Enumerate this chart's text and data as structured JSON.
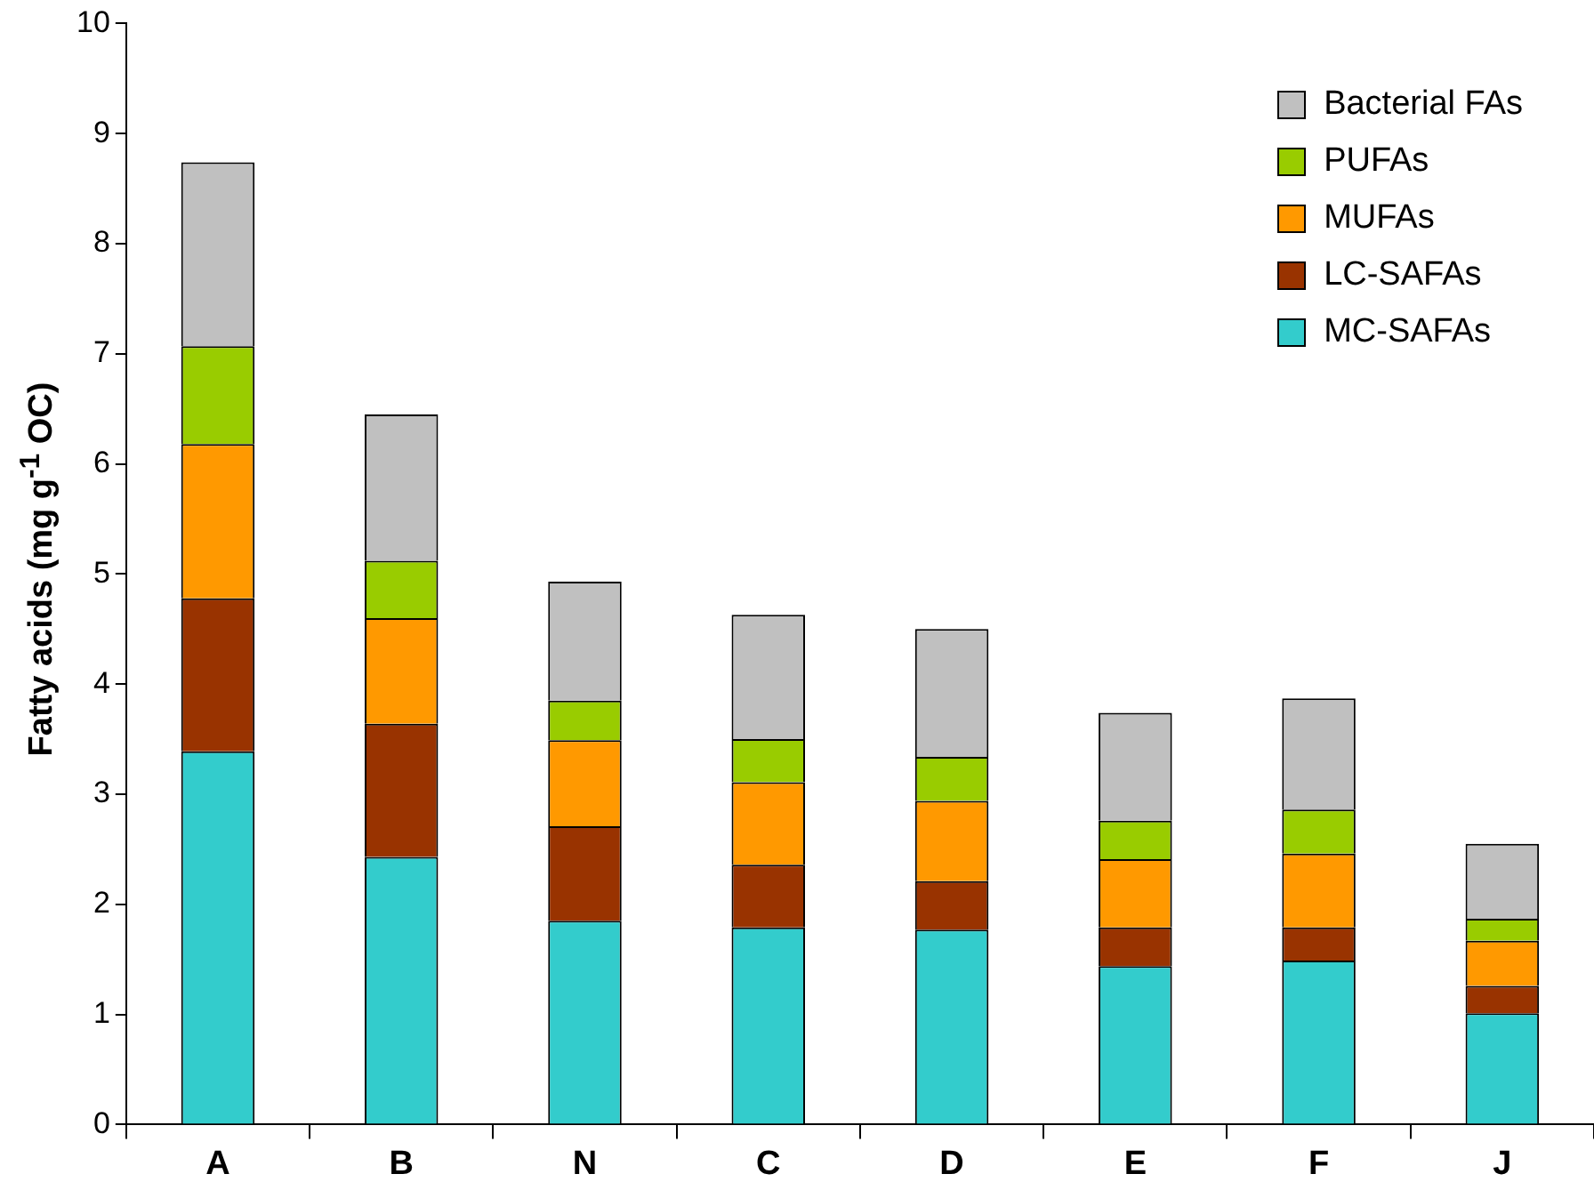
{
  "chart_data": {
    "type": "bar",
    "stacked": true,
    "ylabel": "Fatty acids (mg g$^{-1}$ OC)",
    "categories": [
      "A",
      "B",
      "N",
      "C",
      "D",
      "E",
      "F",
      "J"
    ],
    "ylim": [
      0,
      10
    ],
    "yticks": [
      0,
      1,
      2,
      3,
      4,
      5,
      6,
      7,
      8,
      9,
      10
    ],
    "grid": false,
    "legend": "top right",
    "series": [
      {
        "name": "MC-SAFAs",
        "color": "#33cccc",
        "values": [
          3.39,
          2.43,
          1.85,
          1.79,
          1.77,
          1.44,
          1.49,
          1.01
        ]
      },
      {
        "name": "LC-SAFAs",
        "color": "#993300",
        "values": [
          1.39,
          1.21,
          0.86,
          0.57,
          0.44,
          0.35,
          0.3,
          0.25
        ]
      },
      {
        "name": "MUFAs",
        "color": "#ff9900",
        "values": [
          1.4,
          0.96,
          0.78,
          0.75,
          0.73,
          0.62,
          0.67,
          0.41
        ]
      },
      {
        "name": "PUFAs",
        "color": "#99cc00",
        "values": [
          0.89,
          0.52,
          0.36,
          0.39,
          0.4,
          0.35,
          0.4,
          0.2
        ]
      },
      {
        "name": "Bacterial FAs",
        "color": "#c0c0c0",
        "values": [
          1.67,
          1.33,
          1.08,
          1.13,
          1.16,
          0.98,
          1.01,
          0.68
        ]
      }
    ]
  }
}
